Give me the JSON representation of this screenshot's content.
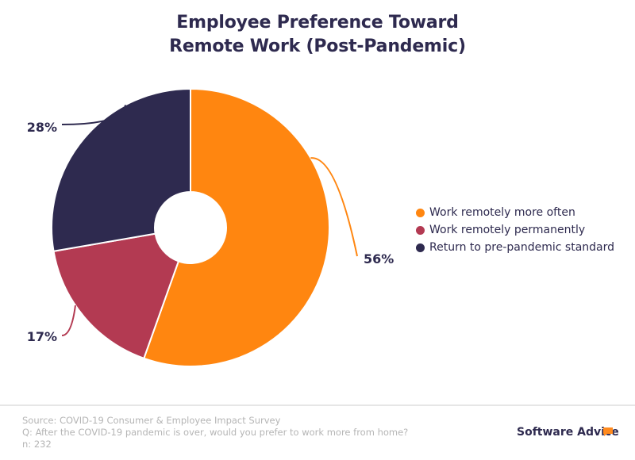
{
  "chart_data": {
    "type": "pie",
    "title": "Employee Preference Toward Remote Work (Post-Pandemic)",
    "title_lines": [
      "Employee Preference Toward",
      "Remote Work (Post-Pandemic)"
    ],
    "donut": true,
    "start": "12 o'clock, clockwise",
    "slices": [
      {
        "label": "Work remotely more often",
        "value": 56,
        "display": "56%",
        "color": "#ff8610"
      },
      {
        "label": "Work remotely permanently",
        "value": 17,
        "display": "17%",
        "color": "#b33a52"
      },
      {
        "label": "Return to pre-pandemic standard",
        "value": 28,
        "display": "28%",
        "color": "#2e2a4f"
      }
    ],
    "legend_position": "right"
  },
  "footer": {
    "source": "Source: COVID-19 Consumer & Employee Impact Survey",
    "question": "Q: After the COVID-19 pandemic is over, would you prefer to work more from home?",
    "sample": "n: 232"
  },
  "brand": {
    "name": "Software Advice",
    "accent": "#ff8a1e"
  }
}
